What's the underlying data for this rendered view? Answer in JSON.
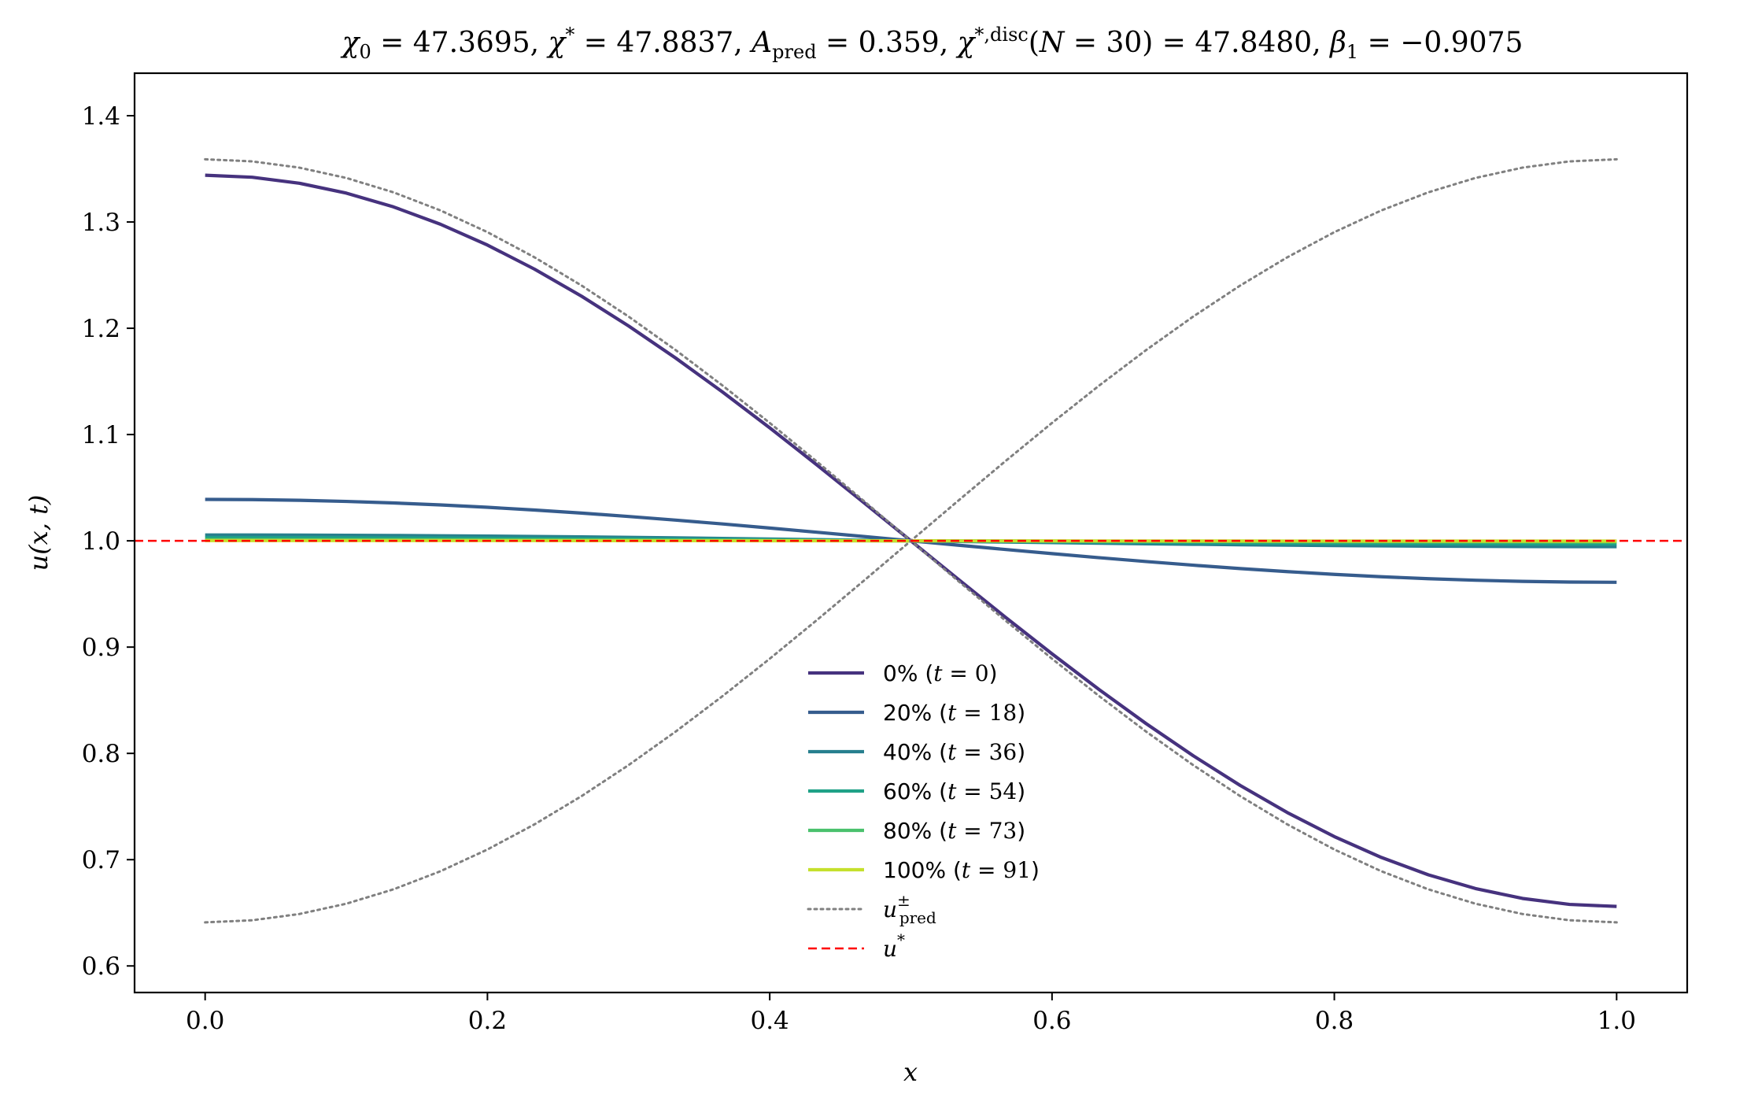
{
  "chart_data": {
    "type": "line",
    "title": "χ₀ = 47.3695,  χ* = 47.8837,  A_pred = 0.359,  χ*,disc(N = 30) = 47.8480,  β₁ = −0.9075",
    "xlabel": "x",
    "ylabel": "u(x, t)",
    "xlim": [
      -0.05,
      1.05
    ],
    "ylim": [
      0.575,
      1.44
    ],
    "xticks": [
      "0.0",
      "0.2",
      "0.4",
      "0.6",
      "0.8",
      "1.0"
    ],
    "yticks": [
      "0.6",
      "0.7",
      "0.8",
      "0.9",
      "1.0",
      "1.1",
      "1.2",
      "1.3",
      "1.4"
    ],
    "grid": false,
    "legend_position": "lower-center",
    "series": [
      {
        "name": "0% (t = 0)",
        "color": "#46327e",
        "style": "solid",
        "amplitude": 0.344
      },
      {
        "name": "20% (t = 18)",
        "color": "#365c8d",
        "style": "solid",
        "amplitude": 0.039
      },
      {
        "name": "40% (t = 36)",
        "color": "#277f8e",
        "style": "solid",
        "amplitude": 0.0055
      },
      {
        "name": "60% (t = 54)",
        "color": "#1fa187",
        "style": "solid",
        "amplitude": 0.003
      },
      {
        "name": "80% (t = 73)",
        "color": "#4ac16d",
        "style": "solid",
        "amplitude": 0.001
      },
      {
        "name": "100% (t = 91)",
        "color": "#c5e02c",
        "style": "solid",
        "amplitude": 0.0003
      },
      {
        "name": "u±pred",
        "color": "#808080",
        "style": "dotted",
        "amplitude": 0.359
      },
      {
        "name": "u*",
        "color": "#ff0000",
        "style": "dashed",
        "value": 1.0
      }
    ],
    "legend": {
      "entries": [
        {
          "pre": "0% (",
          "math": "t = 0",
          "post": ")"
        },
        {
          "pre": "20% (",
          "math": "t = 18",
          "post": ")"
        },
        {
          "pre": "40% (",
          "math": "t = 36",
          "post": ")"
        },
        {
          "pre": "60% (",
          "math": "t = 54",
          "post": ")"
        },
        {
          "pre": "80% (",
          "math": "t = 73",
          "post": ")"
        },
        {
          "pre": "100% (",
          "math": "t = 91",
          "post": ")"
        },
        {
          "pre": "",
          "math": "u",
          "sup": "±",
          "sub": "pred",
          "post": ""
        },
        {
          "pre": "",
          "math": "u",
          "sup": "*",
          "sub": "",
          "post": ""
        }
      ]
    }
  }
}
